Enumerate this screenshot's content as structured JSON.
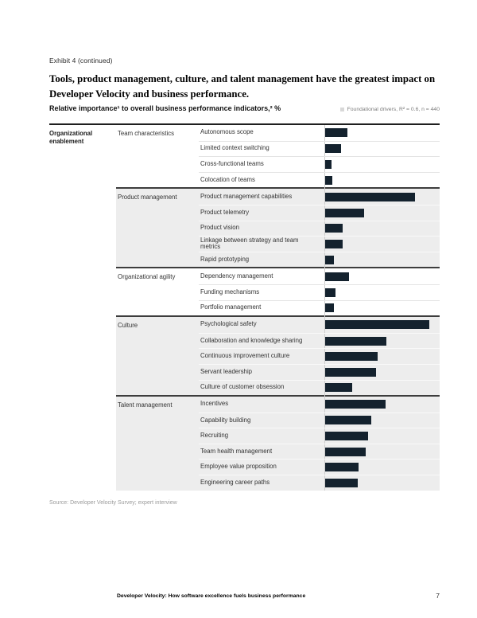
{
  "header": {
    "exhibit_label": "Exhibit 4 (continued)",
    "title_line1": "Tools, product management, culture, and talent management have the greatest impact on",
    "title_line2": "Developer Velocity and business performance."
  },
  "chart": {
    "subtitle": "Relative importance¹ to overall business performance indicators,² %",
    "legend_label": "Foundational drivers, R² = 0.6, n = 440",
    "legend_swatch_color": "#d8d8d8",
    "bar_color": "#14222e"
  },
  "chart_data": {
    "type": "bar",
    "orientation": "horizontal",
    "title": "Relative importance to overall business performance indicators, %",
    "section": "Organizational enablement",
    "legend": [
      "Foundational drivers, R² = 0.6, n = 440"
    ],
    "legend_position": "top-right",
    "axis_labels_shown": false,
    "grid": false,
    "units": "relative bar length, % of longest bar (Psychological safety = 100); no numeric axis labels shown",
    "groups": [
      {
        "subgroup": "Team characteristics",
        "shaded": false,
        "rows": [
          {
            "label": "Autonomous scope",
            "value": 21
          },
          {
            "label": "Limited context switching",
            "value": 15
          },
          {
            "label": "Cross-functional teams",
            "value": 6
          },
          {
            "label": "Colocation of teams",
            "value": 7
          }
        ]
      },
      {
        "subgroup": "Product management",
        "shaded": true,
        "rows": [
          {
            "label": "Product management capabilities",
            "value": 86
          },
          {
            "label": "Product telemetry",
            "value": 37
          },
          {
            "label": "Product vision",
            "value": 17
          },
          {
            "label": "Linkage between strategy and team metrics",
            "value": 17
          },
          {
            "label": "Rapid prototyping",
            "value": 8
          }
        ]
      },
      {
        "subgroup": "Organizational agility",
        "shaded": false,
        "rows": [
          {
            "label": "Dependency management",
            "value": 23
          },
          {
            "label": "Funding mechanisms",
            "value": 10
          },
          {
            "label": "Portfolio management",
            "value": 8
          }
        ]
      },
      {
        "subgroup": "Culture",
        "shaded": true,
        "rows": [
          {
            "label": "Psychological safety",
            "value": 100
          },
          {
            "label": "Collaboration and knowledge sharing",
            "value": 59
          },
          {
            "label": "Continuous improvement culture",
            "value": 50
          },
          {
            "label": "Servant leadership",
            "value": 49
          },
          {
            "label": "Culture of customer obsession",
            "value": 26
          }
        ]
      },
      {
        "subgroup": "Talent management",
        "shaded": true,
        "rows": [
          {
            "label": "Incentives",
            "value": 58
          },
          {
            "label": "Capability building",
            "value": 44
          },
          {
            "label": "Recruiting",
            "value": 41
          },
          {
            "label": "Team health management",
            "value": 39
          },
          {
            "label": "Employee value proposition",
            "value": 32
          },
          {
            "label": "Engineering career paths",
            "value": 31
          }
        ]
      }
    ]
  },
  "footer": {
    "source": "Source: Developer Velocity Survey; expert interview",
    "running_title": "Developer Velocity: How software excellence fuels business performance",
    "page_number": "7"
  }
}
